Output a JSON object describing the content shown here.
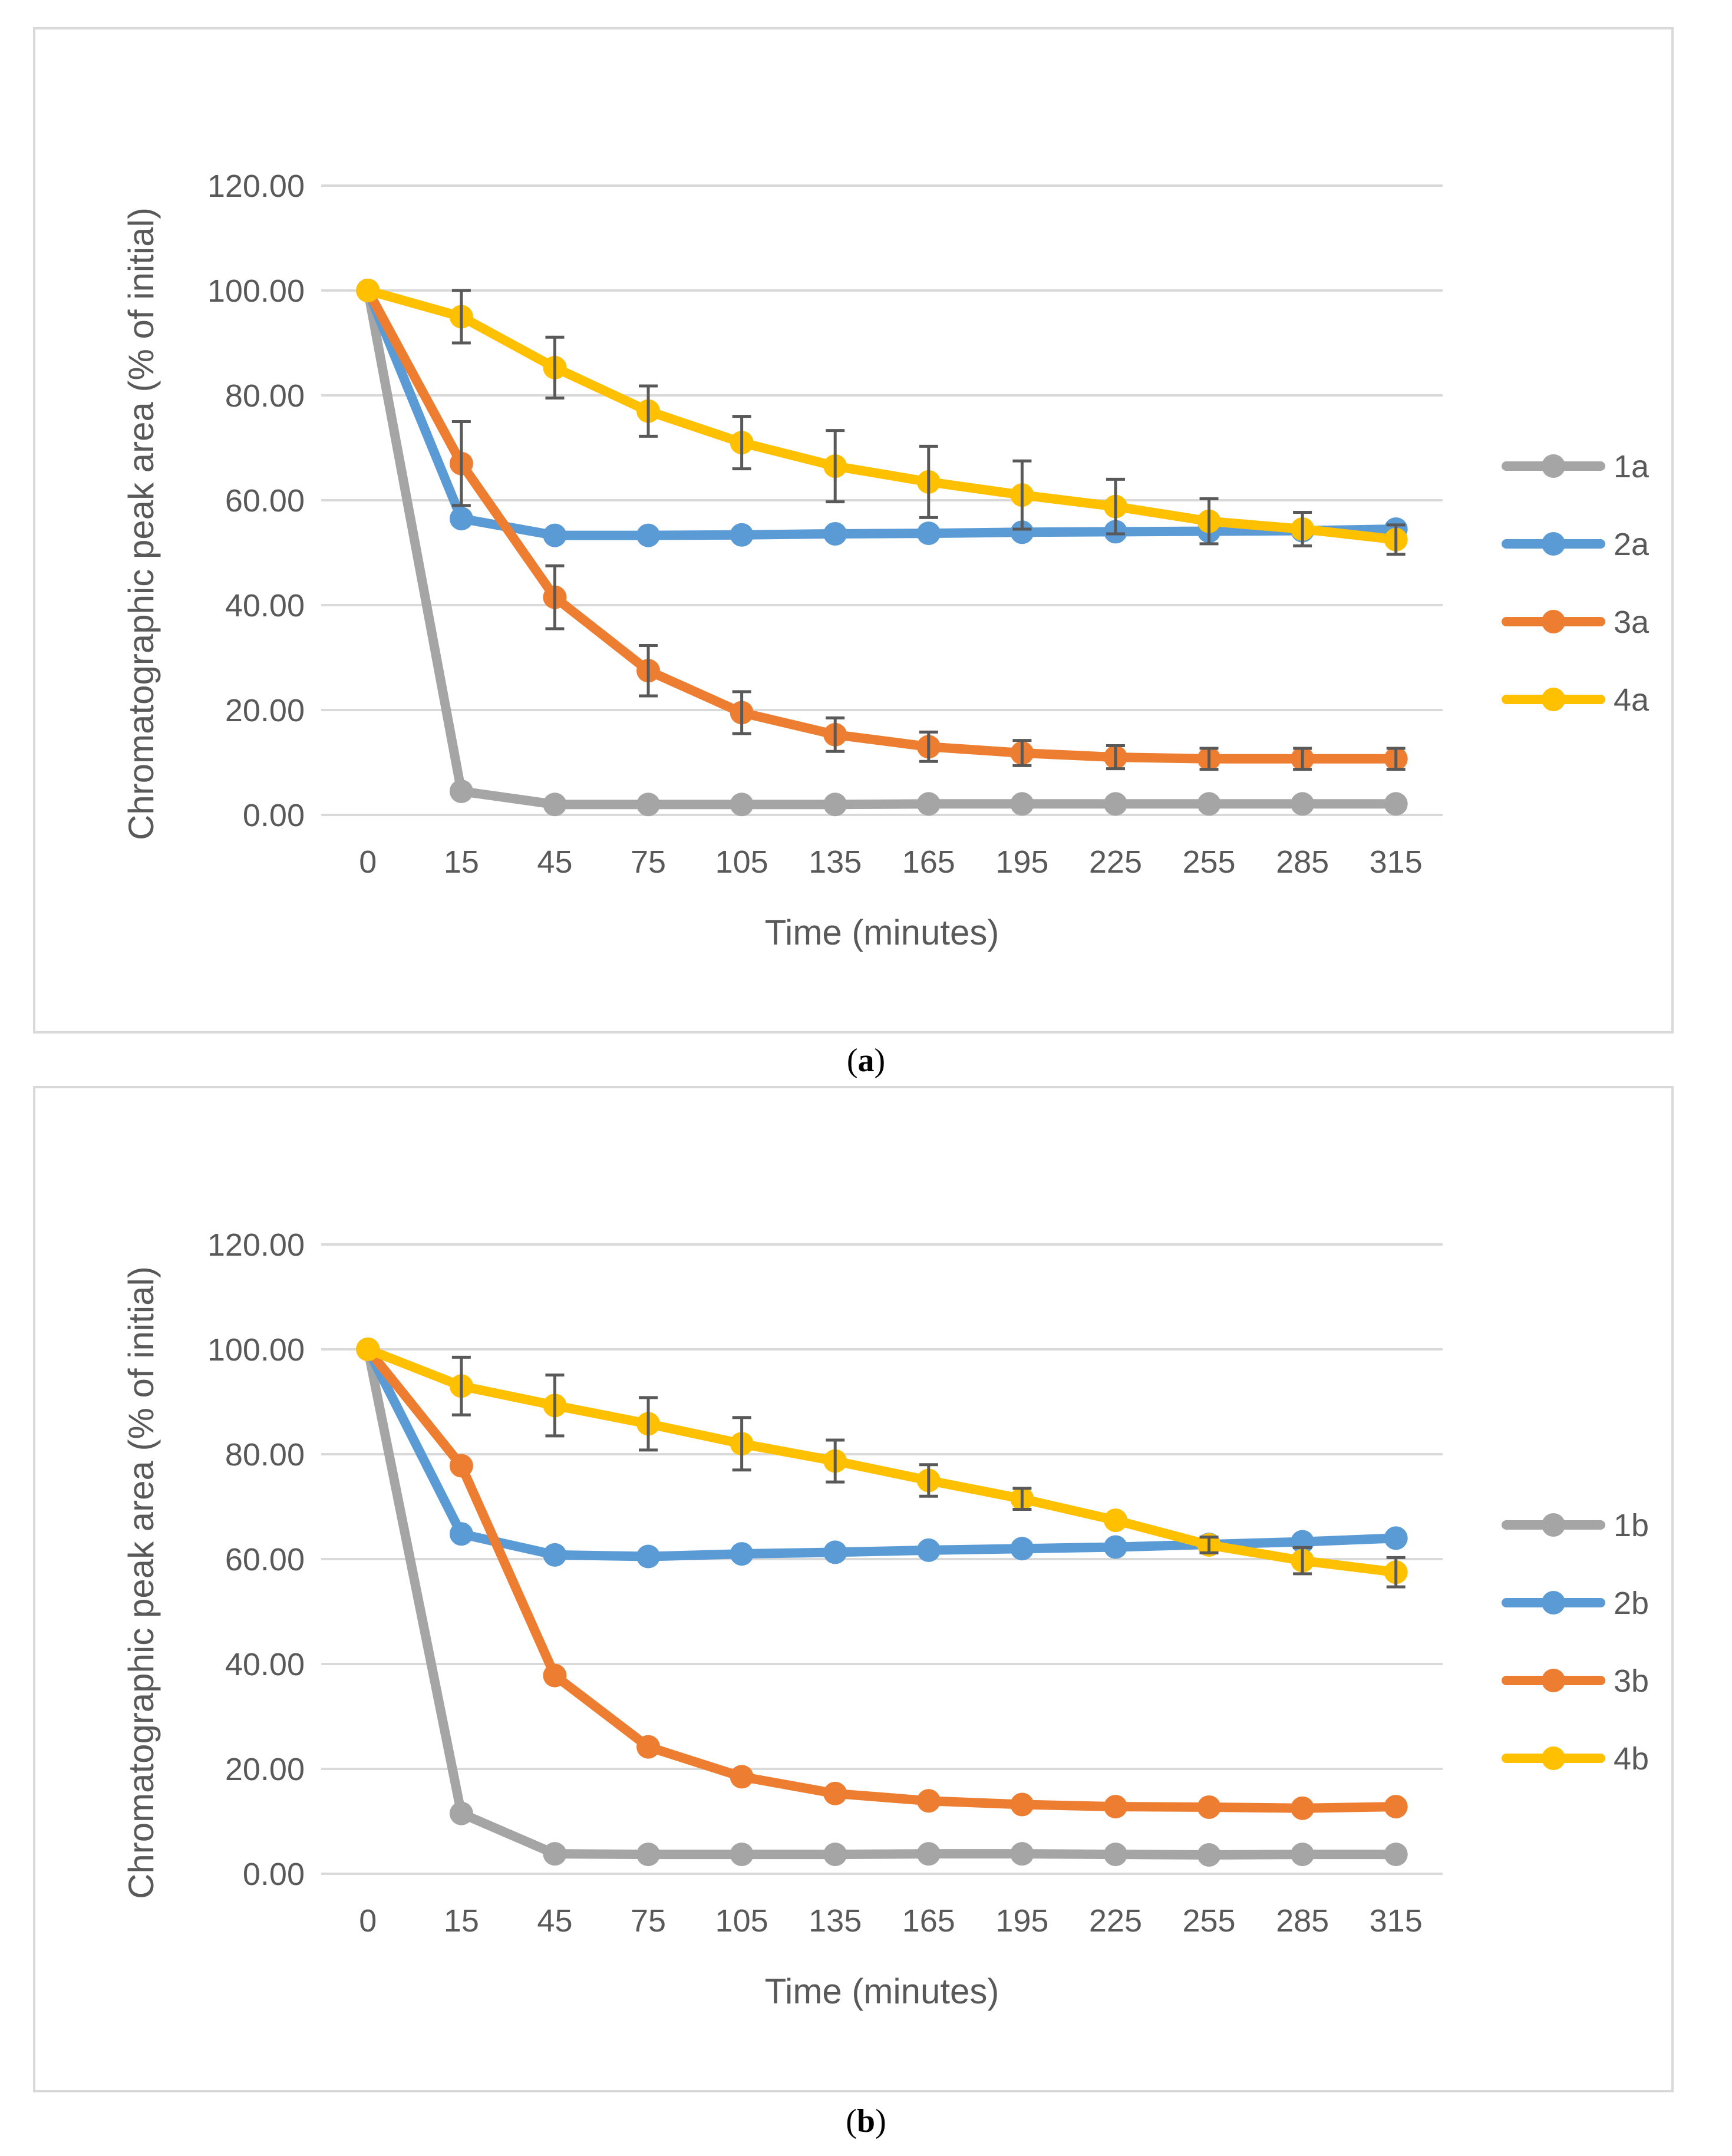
{
  "chart_data": [
    {
      "id": "a",
      "type": "line",
      "caption_label": "a",
      "xlabel": "Time (minutes)",
      "ylabel": "Chromatographic peak area (% of initial)",
      "ylim": [
        0,
        120
      ],
      "yticks": [
        "0.00",
        "20.00",
        "40.00",
        "60.00",
        "80.00",
        "100.00",
        "120.00"
      ],
      "ytick_values": [
        0,
        20,
        40,
        60,
        80,
        100,
        120
      ],
      "categories": [
        "0",
        "15",
        "45",
        "75",
        "105",
        "135",
        "165",
        "195",
        "225",
        "255",
        "285",
        "315"
      ],
      "legend_position": "right",
      "grid": true,
      "series": [
        {
          "name": "1a",
          "color": "#a5a5a5",
          "values": [
            100,
            4.5,
            2.0,
            2.0,
            2.0,
            2.0,
            2.1,
            2.1,
            2.1,
            2.1,
            2.1,
            2.1
          ],
          "errors": []
        },
        {
          "name": "2a",
          "color": "#5b9bd5",
          "values": [
            100,
            56.5,
            53.3,
            53.3,
            53.4,
            53.6,
            53.7,
            53.9,
            54.0,
            54.1,
            54.2,
            54.5
          ],
          "errors": []
        },
        {
          "name": "3a",
          "color": "#ed7d31",
          "values": [
            100,
            67.0,
            41.5,
            27.5,
            19.5,
            15.3,
            13.0,
            11.8,
            11.0,
            10.7,
            10.7,
            10.7
          ],
          "errors": [
            0,
            8.0,
            6.0,
            4.8,
            4.0,
            3.2,
            2.8,
            2.4,
            2.2,
            2.0,
            2.0,
            2.0
          ]
        },
        {
          "name": "4a",
          "color": "#ffc000",
          "values": [
            100,
            95.0,
            85.3,
            77.0,
            71.0,
            66.5,
            63.5,
            61.0,
            58.8,
            56.0,
            54.5,
            52.5
          ],
          "errors": [
            0,
            5.0,
            5.8,
            4.8,
            5.0,
            6.8,
            6.8,
            6.5,
            5.2,
            4.3,
            3.2,
            2.8
          ]
        }
      ]
    },
    {
      "id": "b",
      "type": "line",
      "caption_label": "b",
      "xlabel": "Time (minutes)",
      "ylabel": "Chromatographic peak area (% of initial)",
      "ylim": [
        0,
        120
      ],
      "yticks": [
        "0.00",
        "20.00",
        "40.00",
        "60.00",
        "80.00",
        "100.00",
        "120.00"
      ],
      "ytick_values": [
        0,
        20,
        40,
        60,
        80,
        100,
        120
      ],
      "categories": [
        "0",
        "15",
        "45",
        "75",
        "105",
        "135",
        "165",
        "195",
        "225",
        "255",
        "285",
        "315"
      ],
      "legend_position": "right",
      "grid": true,
      "series": [
        {
          "name": "1b",
          "color": "#a5a5a5",
          "values": [
            100,
            11.5,
            3.8,
            3.7,
            3.7,
            3.7,
            3.8,
            3.8,
            3.7,
            3.6,
            3.7,
            3.7
          ],
          "errors": []
        },
        {
          "name": "2b",
          "color": "#5b9bd5",
          "values": [
            100,
            64.8,
            60.8,
            60.5,
            61.0,
            61.3,
            61.7,
            62.0,
            62.3,
            62.8,
            63.3,
            64.0
          ],
          "errors": []
        },
        {
          "name": "3b",
          "color": "#ed7d31",
          "values": [
            100,
            77.8,
            37.8,
            24.2,
            18.5,
            15.3,
            13.9,
            13.2,
            12.8,
            12.7,
            12.5,
            12.8
          ],
          "errors": []
        },
        {
          "name": "4b",
          "color": "#ffc000",
          "values": [
            100,
            93.0,
            89.3,
            85.8,
            82.0,
            78.7,
            75.0,
            71.5,
            67.4,
            62.7,
            59.7,
            57.5
          ],
          "errors": [
            0,
            5.5,
            5.8,
            5.0,
            5.0,
            4.0,
            3.0,
            2.0,
            0,
            1.5,
            2.5,
            2.8
          ]
        }
      ]
    }
  ]
}
